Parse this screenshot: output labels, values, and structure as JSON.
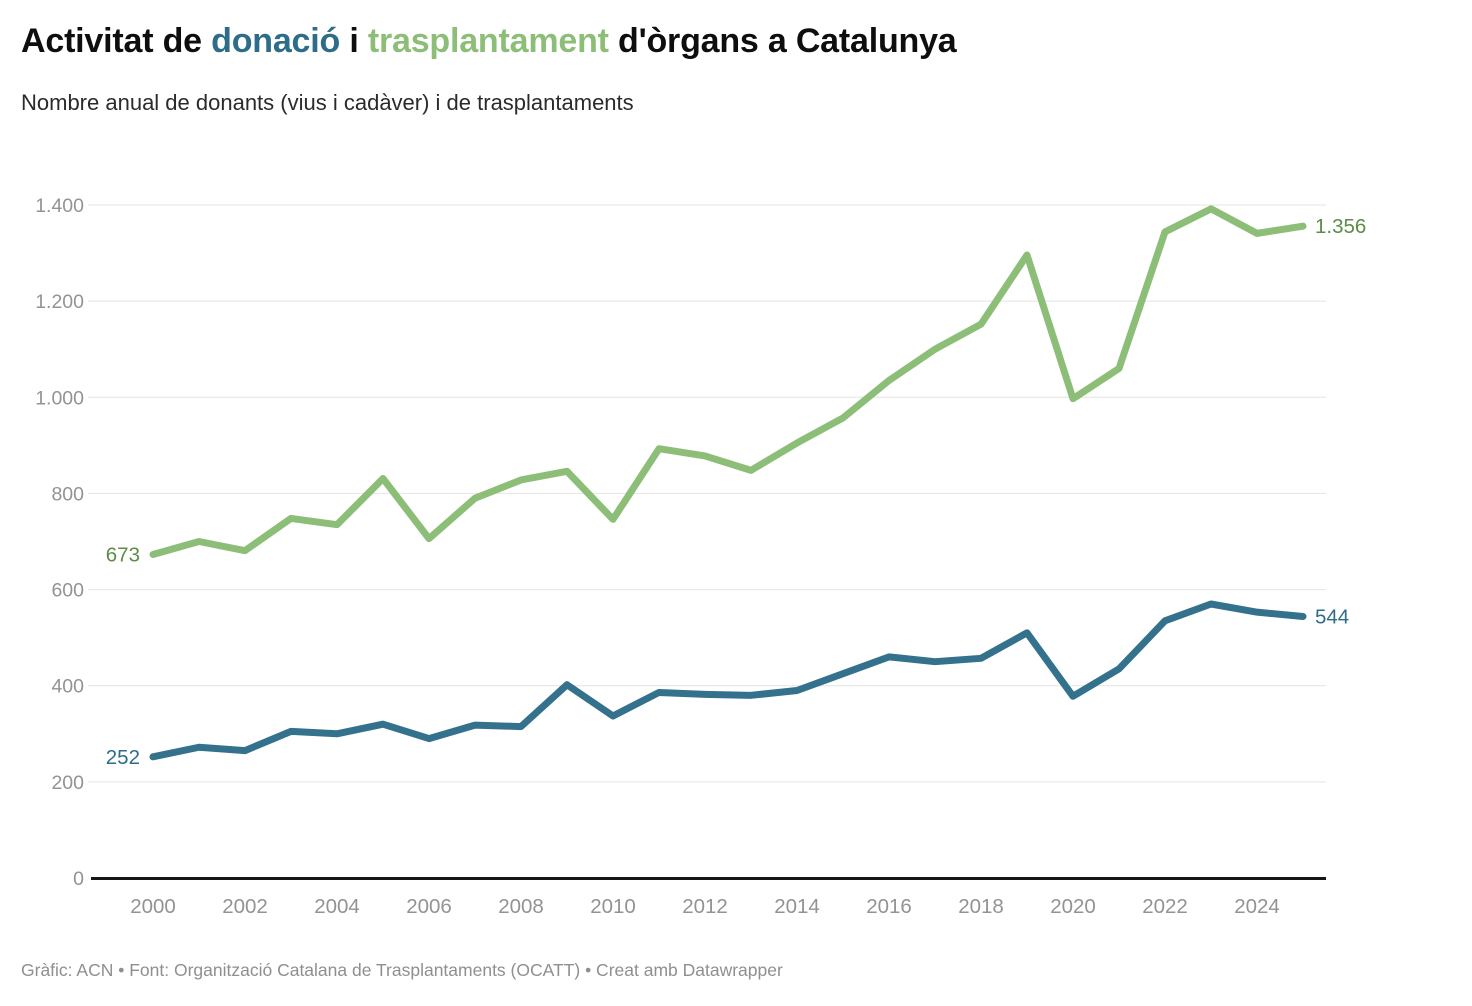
{
  "header": {
    "title_parts": [
      {
        "text": "Activitat de ",
        "color": "#0e0e0e"
      },
      {
        "text": "donació",
        "color": "#2e6d89"
      },
      {
        "text": " i ",
        "color": "#0e0e0e"
      },
      {
        "text": "trasplantament",
        "color": "#8cbe78"
      },
      {
        "text": " d'òrgans a Catalunya",
        "color": "#0e0e0e"
      }
    ],
    "subtitle": "Nombre anual de donants (vius i cadàver) i de trasplantaments"
  },
  "chart_data": {
    "type": "line",
    "x": [
      2000,
      2001,
      2002,
      2003,
      2004,
      2005,
      2006,
      2007,
      2008,
      2009,
      2010,
      2011,
      2012,
      2013,
      2014,
      2015,
      2016,
      2017,
      2018,
      2019,
      2020,
      2021,
      2022,
      2023,
      2024,
      2025
    ],
    "series": [
      {
        "name": "Trasplantaments",
        "color": "#8cbe78",
        "label_color": "#5c8c45",
        "first_label": "673",
        "last_label": "1.356",
        "values": [
          673,
          700,
          681,
          748,
          735,
          831,
          706,
          790,
          828,
          846,
          746,
          893,
          878,
          848,
          905,
          957,
          1035,
          1100,
          1152,
          1296,
          997,
          1060,
          1344,
          1392,
          1341,
          1356
        ]
      },
      {
        "name": "Donants (vius i cadàver)",
        "color": "#34718c",
        "label_color": "#2e6d89",
        "first_label": "252",
        "last_label": "544",
        "values": [
          252,
          272,
          265,
          305,
          300,
          320,
          290,
          318,
          315,
          402,
          337,
          386,
          382,
          380,
          390,
          425,
          460,
          450,
          457,
          510,
          378,
          435,
          535,
          570,
          553,
          544
        ]
      }
    ],
    "ylim": [
      0,
      1400
    ],
    "yticks": [
      {
        "v": 0,
        "label": "0"
      },
      {
        "v": 200,
        "label": "200"
      },
      {
        "v": 400,
        "label": "400"
      },
      {
        "v": 600,
        "label": "600"
      },
      {
        "v": 800,
        "label": "800"
      },
      {
        "v": 1000,
        "label": "1.000"
      },
      {
        "v": 1200,
        "label": "1.200"
      },
      {
        "v": 1400,
        "label": "1.400"
      }
    ],
    "xticks": [
      {
        "v": 2000,
        "label": "2000"
      },
      {
        "v": 2002,
        "label": "2002"
      },
      {
        "v": 2004,
        "label": "2004"
      },
      {
        "v": 2006,
        "label": "2006"
      },
      {
        "v": 2008,
        "label": "2008"
      },
      {
        "v": 2010,
        "label": "2010"
      },
      {
        "v": 2012,
        "label": "2012"
      },
      {
        "v": 2014,
        "label": "2014"
      },
      {
        "v": 2016,
        "label": "2016"
      },
      {
        "v": 2018,
        "label": "2018"
      },
      {
        "v": 2020,
        "label": "2020"
      },
      {
        "v": 2022,
        "label": "2022"
      },
      {
        "v": 2024,
        "label": "2024"
      }
    ],
    "grid": "horizontal",
    "legend_position": "none",
    "colors": {
      "gridline": "#e4e4e4",
      "axis_line": "#161616",
      "tick_text": "#939393"
    }
  },
  "footer": {
    "text": "Gràfic: ACN • Font: Organització Catalana de Trasplantaments (OCATT) • Creat amb Datawrapper"
  }
}
